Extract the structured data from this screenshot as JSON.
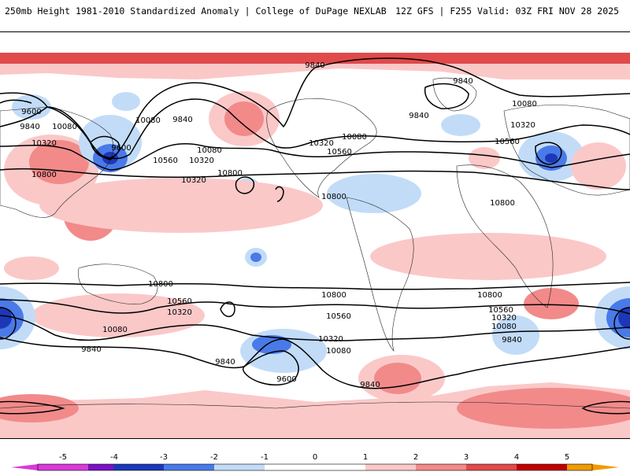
{
  "header": {
    "title_left": "250mb Height 1981-2010 Standardized Anomaly | College of DuPage NEXLAB",
    "title_right": "12Z GFS | F255 Valid: 03Z FRI NOV 28 2025"
  },
  "colors": {
    "neg5": "#d83ad8",
    "neg4": "#7a12c4",
    "neg3": "#1c38b8",
    "neg2": "#4a7ae8",
    "neg1": "#c2dcf8",
    "zero": "#ffffff",
    "pos1": "#fbc8c8",
    "pos2": "#f28a8a",
    "pos3": "#e04a4a",
    "pos4": "#c00000",
    "pos5": "#f09a00",
    "land_line": "#222222",
    "contour_line": "#000000"
  },
  "colorbar": {
    "ticks": [
      "-5",
      "-4",
      "-3",
      "-2",
      "-1",
      "0",
      "1",
      "2",
      "3",
      "4",
      "5"
    ]
  },
  "contour_labels": [
    {
      "text": "9840"
    },
    {
      "text": "9840"
    },
    {
      "text": "9840"
    },
    {
      "text": "9600"
    },
    {
      "text": "9840"
    },
    {
      "text": "10080"
    },
    {
      "text": "10320"
    },
    {
      "text": "9600"
    },
    {
      "text": "10080"
    },
    {
      "text": "10560"
    },
    {
      "text": "10320"
    },
    {
      "text": "10800"
    },
    {
      "text": "10800"
    },
    {
      "text": "10320"
    },
    {
      "text": "10560"
    },
    {
      "text": "10080"
    },
    {
      "text": "9840"
    },
    {
      "text": "10080"
    },
    {
      "text": "10320"
    },
    {
      "text": "10560"
    },
    {
      "text": "10800"
    },
    {
      "text": "10800"
    },
    {
      "text": "10800"
    },
    {
      "text": "10800"
    },
    {
      "text": "10800"
    },
    {
      "text": "10560"
    },
    {
      "text": "10320"
    },
    {
      "text": "10080"
    },
    {
      "text": "10560"
    },
    {
      "text": "10320"
    },
    {
      "text": "10080"
    },
    {
      "text": "9840"
    },
    {
      "text": "9840"
    },
    {
      "text": "9600"
    },
    {
      "text": "10560"
    },
    {
      "text": "10320"
    },
    {
      "text": "10080"
    },
    {
      "text": "9840"
    },
    {
      "text": "9840"
    },
    {
      "text": "10080"
    },
    {
      "text": "10320"
    }
  ]
}
